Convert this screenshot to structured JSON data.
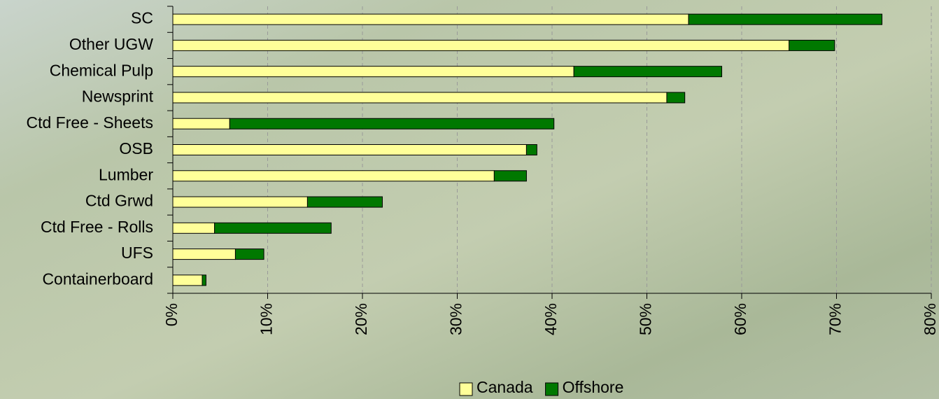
{
  "chart_data": {
    "type": "stacked-bar-horizontal",
    "categories": [
      "SC",
      "Other UGW",
      "Chemical Pulp",
      "Newsprint",
      "Ctd Free - Sheets",
      "OSB",
      "Lumber",
      "Ctd Grwd",
      "Ctd Free - Rolls",
      "UFS",
      "Containerboard"
    ],
    "series": [
      {
        "name": "Canada",
        "color": "#ffff99",
        "values": [
          54.4,
          65.0,
          42.3,
          52.1,
          6.0,
          37.3,
          33.9,
          14.2,
          4.4,
          6.6,
          3.1
        ]
      },
      {
        "name": "Offshore",
        "color": "#007800",
        "values": [
          20.4,
          4.8,
          15.6,
          1.9,
          34.2,
          1.1,
          3.4,
          7.9,
          12.3,
          3.0,
          0.4
        ]
      }
    ],
    "xlim": [
      0,
      80
    ],
    "xticks": [
      {
        "value": 0,
        "label": "0%"
      },
      {
        "value": 10,
        "label": "10%"
      },
      {
        "value": 20,
        "label": "20%"
      },
      {
        "value": 30,
        "label": "30%"
      },
      {
        "value": 40,
        "label": "40%"
      },
      {
        "value": 50,
        "label": "50%"
      },
      {
        "value": 60,
        "label": "60%"
      },
      {
        "value": 70,
        "label": "70%"
      },
      {
        "value": 80,
        "label": "80%"
      }
    ],
    "grid": true,
    "legend": "bottom"
  }
}
